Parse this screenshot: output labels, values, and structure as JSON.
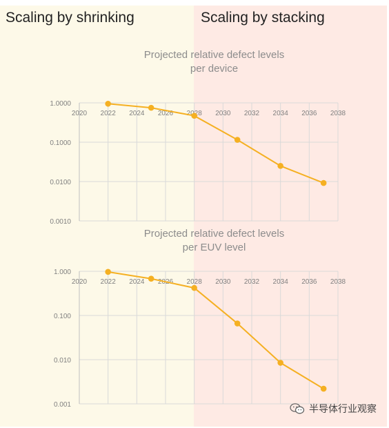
{
  "header": {
    "left_label": "Scaling by shrinking",
    "right_label": "Scaling by stacking"
  },
  "colors": {
    "left_bg": "#fdf9e8",
    "right_bg": "#feeae4",
    "series": "#f5b022",
    "grid": "#d9d9d9",
    "axis_text": "#7f7f7f"
  },
  "watermark": {
    "icon": "wechat-icon",
    "text": "半导体行业观察"
  },
  "chart_data": [
    {
      "type": "line",
      "title": "Projected relative defect levels\nper device",
      "xscale": "linear",
      "yscale": "log",
      "xlim": [
        2020,
        2038
      ],
      "ylim": [
        0.001,
        1
      ],
      "xticks": [
        2020,
        2022,
        2024,
        2026,
        2028,
        2030,
        2032,
        2034,
        2036,
        2038
      ],
      "xtick_labels": [
        "2020",
        "2022",
        "2024",
        "2026",
        "2028",
        "2030",
        "2032",
        "2034",
        "2036",
        "2038"
      ],
      "yticks": [
        1,
        0.1,
        0.01,
        0.001
      ],
      "ytick_labels": [
        "1.0000",
        "0.1000",
        "0.0100",
        "0.0010"
      ],
      "x_axis_position": "top",
      "grid": true,
      "series": [
        {
          "x": [
            2022,
            2025,
            2028,
            2031,
            2034,
            2037
          ],
          "y": [
            0.95,
            0.75,
            0.47,
            0.115,
            0.025,
            0.0092
          ]
        }
      ]
    },
    {
      "type": "line",
      "title": "Projected relative defect levels\nper EUV level",
      "xscale": "linear",
      "yscale": "log",
      "xlim": [
        2020,
        2038
      ],
      "ylim": [
        0.001,
        1
      ],
      "xticks": [
        2020,
        2022,
        2024,
        2026,
        2028,
        2030,
        2032,
        2034,
        2036,
        2038
      ],
      "xtick_labels": [
        "2020",
        "2022",
        "2024",
        "2026",
        "2028",
        "2030",
        "2032",
        "2034",
        "2036",
        "2038"
      ],
      "yticks": [
        1,
        0.1,
        0.01,
        0.001
      ],
      "ytick_labels": [
        "1.000",
        "0.100",
        "0.010",
        "0.001"
      ],
      "x_axis_position": "top",
      "grid": true,
      "series": [
        {
          "x": [
            2022,
            2025,
            2028,
            2031,
            2034,
            2037
          ],
          "y": [
            0.97,
            0.68,
            0.42,
            0.066,
            0.0085,
            0.0022
          ]
        }
      ]
    }
  ]
}
